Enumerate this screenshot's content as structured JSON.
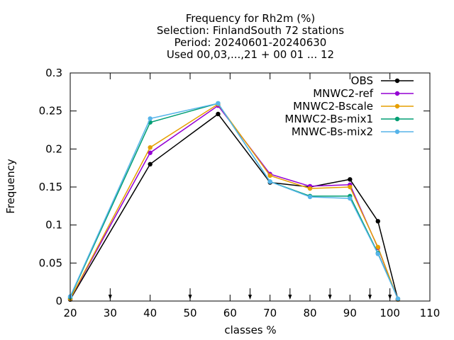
{
  "chart_data": {
    "type": "line",
    "title_lines": [
      "Frequency  for Rh2m (%)",
      "Selection: FinlandSouth     72 stations",
      "Period: 20240601-20240630",
      "Used 00,03,...,21 + 00 01 ... 12"
    ],
    "xlabel": "classes %",
    "ylabel": "Frequency",
    "xlim": [
      20,
      110
    ],
    "ylim": [
      0,
      0.3
    ],
    "xticks": [
      20,
      30,
      40,
      50,
      60,
      70,
      80,
      90,
      100,
      110
    ],
    "yticks": [
      0,
      0.05,
      0.1,
      0.15,
      0.2,
      0.25,
      0.3
    ],
    "xtick_labels": [
      "20",
      "30",
      "40",
      "50",
      "60",
      "70",
      "80",
      "90",
      "100",
      "110"
    ],
    "ytick_labels": [
      "0",
      "0.05",
      "0.1",
      "0.15",
      "0.2",
      "0.25",
      "0.3"
    ],
    "class_boundaries": [
      30,
      50,
      65,
      75,
      85,
      95,
      100
    ],
    "x": [
      20,
      40,
      57,
      70,
      80,
      90,
      97,
      102
    ],
    "legend_position": "top-right",
    "series": [
      {
        "name": "OBS",
        "color": "#000000",
        "values": [
          0.002,
          0.18,
          0.246,
          0.156,
          0.15,
          0.16,
          0.105,
          0.002
        ]
      },
      {
        "name": "MNWC2-ref",
        "color": "#9400d3",
        "values": [
          0.003,
          0.195,
          0.257,
          0.167,
          0.151,
          0.153,
          0.07,
          0.002
        ]
      },
      {
        "name": "MNWC2-Bscale",
        "color": "#e69f00",
        "values": [
          0.003,
          0.202,
          0.259,
          0.165,
          0.148,
          0.15,
          0.071,
          0.002
        ]
      },
      {
        "name": "MNWC2-Bs-mix1",
        "color": "#009e73",
        "values": [
          0.005,
          0.235,
          0.26,
          0.157,
          0.138,
          0.138,
          0.063,
          0.003
        ]
      },
      {
        "name": "MNWC-Bs-mix2",
        "color": "#56b4e9",
        "values": [
          0.006,
          0.24,
          0.26,
          0.157,
          0.137,
          0.135,
          0.062,
          0.003
        ]
      }
    ]
  }
}
